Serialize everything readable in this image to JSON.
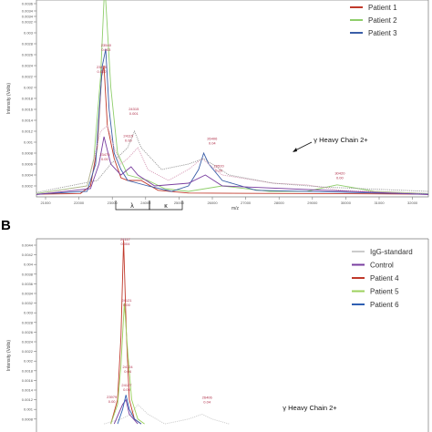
{
  "chart_data": [
    {
      "panel": "",
      "type": "line",
      "xlabel": "m/z",
      "ylabel": "Intensity (Volts)",
      "xlim": [
        21500,
        33100
      ],
      "ylim": [
        0,
        0.0036
      ],
      "x_ticks": [
        "21000",
        "22000",
        "23000",
        "24000",
        "25000",
        "26000",
        "27000",
        "28000",
        "29000",
        "30000",
        "31000",
        "32000"
      ],
      "y_ticks": [
        "0.0002",
        "0.0004",
        "0.0006",
        "0.0008",
        "0.001",
        "0.0012",
        "0.0014",
        "0.0016",
        "0.0018",
        "0.002",
        "0.0022",
        "0.0024",
        "0.0026",
        "0.0028",
        "0.003",
        "0.0032",
        "0.0034"
      ],
      "y_ticks_top": [
        "0.0036",
        "0.0034"
      ],
      "series": [
        {
          "name": "Patient 1",
          "color": "#c0392b",
          "points": [
            [
              21500,
              5e-05
            ],
            [
              22800,
              6e-05
            ],
            [
              23100,
              0.0002
            ],
            [
              23300,
              0.0009
            ],
            [
              23430,
              0.0022
            ],
            [
              23500,
              0.0024
            ],
            [
              23600,
              0.0013
            ],
            [
              23800,
              0.0007
            ],
            [
              24000,
              0.00035
            ],
            [
              24200,
              0.0003
            ],
            [
              24600,
              0.0003
            ],
            [
              25100,
              0.00012
            ],
            [
              26000,
              7e-05
            ],
            [
              33100,
              5e-05
            ]
          ]
        },
        {
          "name": "Patient 2",
          "color": "#8fce6b",
          "points": [
            [
              21500,
              6e-05
            ],
            [
              23000,
              0.0002
            ],
            [
              23200,
              0.0007
            ],
            [
              23400,
              0.0022
            ],
            [
              23520,
              0.0039
            ],
            [
              23700,
              0.002
            ],
            [
              23900,
              0.0008
            ],
            [
              24200,
              0.0004
            ],
            [
              24800,
              0.0003
            ],
            [
              25300,
              0.00015
            ],
            [
              26000,
              0.0001
            ],
            [
              27000,
              0.0002
            ],
            [
              28400,
              0.0001
            ],
            [
              29500,
              0.0001
            ],
            [
              30400,
              0.00022
            ],
            [
              31500,
              0.0001
            ],
            [
              33100,
              6e-05
            ]
          ]
        },
        {
          "name": "Patient 3",
          "color": "#3a5ea8",
          "points": [
            [
              21500,
              5e-05
            ],
            [
              23000,
              0.0001
            ],
            [
              23250,
              0.0006
            ],
            [
              23450,
              0.0024
            ],
            [
              23550,
              0.0027
            ],
            [
              23650,
              0.0016
            ],
            [
              23800,
              0.0008
            ],
            [
              24000,
              0.0005
            ],
            [
              24200,
              0.0003
            ],
            [
              24800,
              0.0002
            ],
            [
              25500,
              0.0001
            ],
            [
              26000,
              0.0002
            ],
            [
              26300,
              0.0005
            ],
            [
              26450,
              0.0008
            ],
            [
              26600,
              0.0006
            ],
            [
              27000,
              0.0003
            ],
            [
              28000,
              0.00012
            ],
            [
              33100,
              5e-05
            ]
          ]
        },
        {
          "name": "",
          "color": "#d89db8",
          "dashed": true,
          "points": [
            [
              21500,
              5e-05
            ],
            [
              23000,
              0.0002
            ],
            [
              23400,
              0.0012
            ],
            [
              23600,
              0.0013
            ],
            [
              23800,
              0.0009
            ],
            [
              24000,
              0.0006
            ],
            [
              24200,
              0.0007
            ],
            [
              24500,
              0.0009
            ],
            [
              24800,
              0.0005
            ],
            [
              25400,
              0.0003
            ],
            [
              26000,
              0.0005
            ],
            [
              26400,
              0.0007
            ],
            [
              27000,
              0.0004
            ],
            [
              28500,
              0.00025
            ],
            [
              29500,
              0.00022
            ],
            [
              30500,
              0.00012
            ],
            [
              33100,
              6e-05
            ]
          ]
        },
        {
          "name": "",
          "color": "#7a3fa0",
          "points": [
            [
              21500,
              4e-05
            ],
            [
              23100,
              0.00015
            ],
            [
              23350,
              0.0006
            ],
            [
              23500,
              0.0011
            ],
            [
              23700,
              0.0006
            ],
            [
              24000,
              0.0004
            ],
            [
              24300,
              0.00055
            ],
            [
              24500,
              0.0004
            ],
            [
              25000,
              0.0002
            ],
            [
              26000,
              0.00025
            ],
            [
              26500,
              0.0004
            ],
            [
              27000,
              0.0002
            ],
            [
              33100,
              4e-05
            ]
          ]
        },
        {
          "name": "",
          "color": "#999999",
          "dashed": true,
          "points": [
            [
              21500,
              8e-05
            ],
            [
              23300,
              0.0003
            ],
            [
              23700,
              0.0006
            ],
            [
              24200,
              0.0009
            ],
            [
              24400,
              0.0012
            ],
            [
              24600,
              0.0009
            ],
            [
              25200,
              0.0005
            ],
            [
              26000,
              0.0006
            ],
            [
              26450,
              0.0007
            ],
            [
              27200,
              0.0004
            ],
            [
              28500,
              0.00025
            ],
            [
              30000,
              0.00018
            ],
            [
              33100,
              0.0001
            ]
          ]
        }
      ],
      "peak_labels": [
        {
          "text": [
            "23540",
            "0.003"
          ],
          "x": 23560,
          "y": 0.00275
        },
        {
          "text": [
            "23475",
            "0.002"
          ],
          "x": 23430,
          "y": 0.00235
        },
        {
          "text": [
            "24315",
            "0.001"
          ],
          "x": 24380,
          "y": 0.00158
        },
        {
          "text": [
            "24115",
            "0.00"
          ],
          "x": 24220,
          "y": 0.00109
        },
        {
          "text": [
            "23475",
            "0.00"
          ],
          "x": 23520,
          "y": 0.00075
        },
        {
          "text": [
            "26406",
            "0.04"
          ],
          "x": 26700,
          "y": 0.00104
        },
        {
          "text": [
            "26520",
            "0.00"
          ],
          "x": 26900,
          "y": 0.00054
        },
        {
          "text": [
            "30420",
            "0.00"
          ],
          "x": 30480,
          "y": 0.00041
        }
      ],
      "annotation": "γ Heavy Chain 2+",
      "brackets": [
        "λ",
        "κ"
      ]
    },
    {
      "panel": "B",
      "type": "line",
      "xlabel": "",
      "ylabel": "Intensity (Volts)",
      "xlim": [
        21500,
        33100
      ],
      "ylim": [
        0,
        0.0046
      ],
      "y_ticks": [
        "0.0044",
        "0.0042",
        "0.004",
        "0.0038",
        "0.0036",
        "0.0034",
        "0.0032",
        "0.003",
        "0.0028",
        "0.0026",
        "0.0024",
        "0.0022",
        "0.002",
        "0.0018",
        "0.0016",
        "0.0014",
        "0.0012",
        "0.001",
        "0.0008"
      ],
      "series": [
        {
          "name": "IgG-standard",
          "color": "#cccccc",
          "points": [
            [
              23500,
              0.0007
            ],
            [
              24000,
              0.0008
            ],
            [
              24300,
              0.0009
            ],
            [
              24500,
              0.0011
            ],
            [
              24800,
              0.0009
            ],
            [
              25300,
              0.0007
            ],
            [
              26000,
              0.0008
            ],
            [
              26400,
              0.0009
            ],
            [
              26700,
              0.0008
            ],
            [
              27200,
              0.0007
            ]
          ]
        },
        {
          "name": "Control",
          "color": "#7a3fa0",
          "points": [
            [
              23800,
              0.0007
            ],
            [
              24050,
              0.0011
            ],
            [
              24150,
              0.0012
            ],
            [
              24250,
              0.0009
            ],
            [
              24500,
              0.0007
            ]
          ]
        },
        {
          "name": "Patient 4",
          "color": "#c0392b",
          "points": [
            [
              23700,
              0.0007
            ],
            [
              23900,
              0.0012
            ],
            [
              24000,
              0.0025
            ],
            [
              24080,
              0.0045
            ],
            [
              24160,
              0.0026
            ],
            [
              24250,
              0.0012
            ],
            [
              24400,
              0.0008
            ],
            [
              24600,
              0.0007
            ]
          ]
        },
        {
          "name": "Patient 5",
          "color": "#9cd15e",
          "points": [
            [
              23700,
              0.0007
            ],
            [
              23900,
              0.0011
            ],
            [
              24000,
              0.0019
            ],
            [
              24100,
              0.0032
            ],
            [
              24200,
              0.0022
            ],
            [
              24320,
              0.0012
            ],
            [
              24500,
              0.0008
            ],
            [
              24700,
              0.0007
            ]
          ]
        },
        {
          "name": "Patient 6",
          "color": "#2f5fb3",
          "points": [
            [
              23900,
              0.0007
            ],
            [
              24050,
              0.001
            ],
            [
              24150,
              0.0013
            ],
            [
              24250,
              0.001
            ],
            [
              24400,
              0.0008
            ],
            [
              24600,
              0.0007
            ]
          ]
        }
      ],
      "peak_labels": [
        {
          "text": [
            "24117",
            "0.004"
          ],
          "x": 24130,
          "y": 0.00449
        },
        {
          "text": [
            "24121",
            "0.00"
          ],
          "x": 24170,
          "y": 0.00323
        },
        {
          "text": [
            "24124",
            "0.04"
          ],
          "x": 24200,
          "y": 0.00185
        },
        {
          "text": [
            "24127",
            "0.00"
          ],
          "x": 24170,
          "y": 0.00148
        },
        {
          "text": [
            "23979",
            "0.00"
          ],
          "x": 23730,
          "y": 0.00123
        },
        {
          "text": [
            "26406",
            "0.04"
          ],
          "x": 26550,
          "y": 0.00122
        }
      ],
      "annotation": "γ Heavy Chain 2+"
    }
  ]
}
